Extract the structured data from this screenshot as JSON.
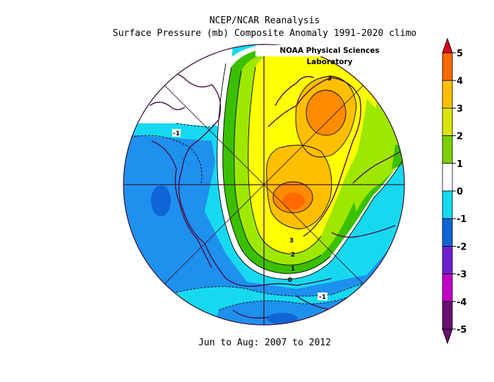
{
  "title": {
    "line1": "NCEP/NCAR Reanalysis",
    "line2": "Surface Pressure (mb) Composite Anomaly 1991-2020 climo"
  },
  "lab_label": "NOAA Physical Sciences Laboratory",
  "footer": "Jun to Aug: 2007 to 2012",
  "contour_labels": {
    "m1_left": "-1",
    "m1_bottom": "-1",
    "zero": "0",
    "one": "1",
    "two": "2",
    "three": "3",
    "three_top": "3"
  },
  "colorbar": {
    "ticks": [
      "5",
      "4",
      "3",
      "2",
      "1",
      "0",
      "-1",
      "-2",
      "-3",
      "-4",
      "-5"
    ],
    "colors": [
      "#e0001c",
      "#ff6a00",
      "#ffbf00",
      "#d9e600",
      "#7ccf00",
      "#ffffff",
      "#16d9f0",
      "#0f64d6",
      "#6e1fd0",
      "#c000c8",
      "#6a1070"
    ]
  },
  "map_colors": {
    "ocean_light": "#16d9f0",
    "ocean_mid": "#1e90ee",
    "ocean_deep": "#0f64d6",
    "white": "#ffffff",
    "green": "#3ac000",
    "lime": "#9ee800",
    "yellow": "#ffff00",
    "orange": "#ffbf00",
    "dark_orange": "#ff8c00",
    "red_orange": "#ff6a00",
    "coast": "#4b0f4a"
  }
}
